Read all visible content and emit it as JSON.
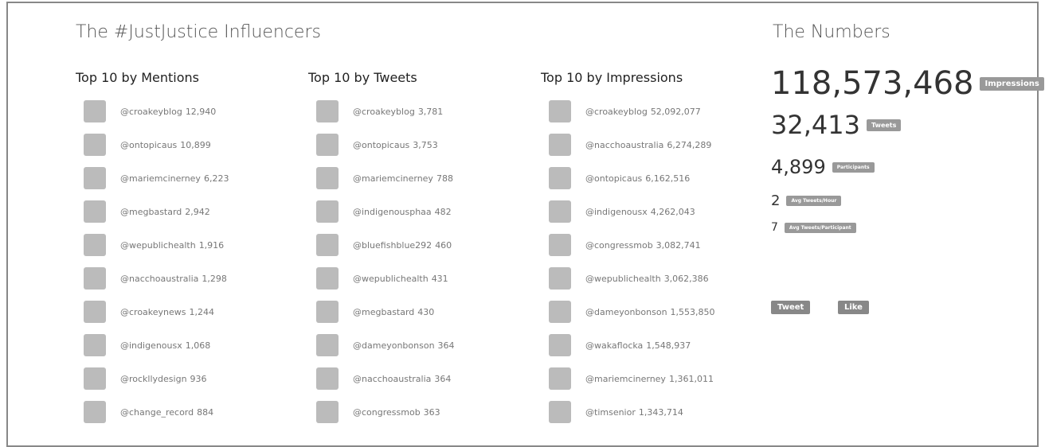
{
  "header": {
    "title": "The #JustJustice Influencers"
  },
  "lists": [
    {
      "heading": "Top 10 by Mentions",
      "entries": [
        {
          "handle": "@croakeyblog",
          "count": "12,940"
        },
        {
          "handle": "@ontopicaus",
          "count": "10,899"
        },
        {
          "handle": "@mariemcinerney",
          "count": "6,223"
        },
        {
          "handle": "@megbastard",
          "count": "2,942"
        },
        {
          "handle": "@wepublichealth",
          "count": "1,916"
        },
        {
          "handle": "@nacchoaustralia",
          "count": "1,298"
        },
        {
          "handle": "@croakeynews",
          "count": "1,244"
        },
        {
          "handle": "@indigenousx",
          "count": "1,068"
        },
        {
          "handle": "@rockllydesign",
          "count": "936"
        },
        {
          "handle": "@change_record",
          "count": "884"
        }
      ]
    },
    {
      "heading": "Top 10 by Tweets",
      "entries": [
        {
          "handle": "@croakeyblog",
          "count": "3,781"
        },
        {
          "handle": "@ontopicaus",
          "count": "3,753"
        },
        {
          "handle": "@mariemcinerney",
          "count": "788"
        },
        {
          "handle": "@indigenousphaa",
          "count": "482"
        },
        {
          "handle": "@bluefishblue292",
          "count": "460"
        },
        {
          "handle": "@wepublichealth",
          "count": "431"
        },
        {
          "handle": "@megbastard",
          "count": "430"
        },
        {
          "handle": "@dameyonbonson",
          "count": "364"
        },
        {
          "handle": "@nacchoaustralia",
          "count": "364"
        },
        {
          "handle": "@congressmob",
          "count": "363"
        }
      ]
    },
    {
      "heading": "Top 10 by Impressions",
      "entries": [
        {
          "handle": "@croakeyblog",
          "count": "52,092,077"
        },
        {
          "handle": "@nacchoaustralia",
          "count": "6,274,289"
        },
        {
          "handle": "@ontopicaus",
          "count": "6,162,516"
        },
        {
          "handle": "@indigenousx",
          "count": "4,262,043"
        },
        {
          "handle": "@congressmob",
          "count": "3,082,741"
        },
        {
          "handle": "@wepublichealth",
          "count": "3,062,386"
        },
        {
          "handle": "@dameyonbonson",
          "count": "1,553,850"
        },
        {
          "handle": "@wakaflocka",
          "count": "1,548,937"
        },
        {
          "handle": "@mariemcinerney",
          "count": "1,361,011"
        },
        {
          "handle": "@timsenior",
          "count": "1,343,714"
        }
      ]
    }
  ],
  "numbers": {
    "title": "The Numbers",
    "stats": [
      {
        "value": "118,573,468",
        "label": "Impressions"
      },
      {
        "value": "32,413",
        "label": "Tweets"
      },
      {
        "value": "4,899",
        "label": "Participants"
      },
      {
        "value": "2",
        "label": "Avg Tweets/Hour"
      },
      {
        "value": "7",
        "label": "Avg Tweets/Participant"
      }
    ]
  },
  "buttons": {
    "tweet": "Tweet",
    "like": "Like"
  }
}
